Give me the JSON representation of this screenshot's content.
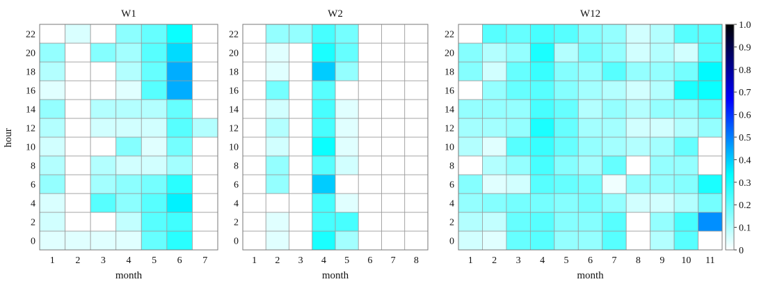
{
  "chart_data": {
    "type": "heatmap",
    "ylabel": "hour",
    "xlabel": "month",
    "y_ticks": [
      "0",
      "2",
      "4",
      "6",
      "8",
      "10",
      "12",
      "14",
      "16",
      "18",
      "20",
      "22"
    ],
    "colorbar": {
      "min": 0,
      "max": 1.0,
      "ticks": [
        "0",
        "0.1",
        "0.2",
        "0.3",
        "0.4",
        "0.5",
        "0.6",
        "0.7",
        "0.8",
        "0.9",
        "1.0"
      ],
      "colors": [
        "#ffffff",
        "#00ffff",
        "#0000ff",
        "#000000"
      ]
    },
    "panels": [
      {
        "title": "W1",
        "categories": [
          "1",
          "2",
          "3",
          "4",
          "5",
          "6",
          "7"
        ],
        "values": [
          [
            0.04,
            0.04,
            0.04,
            0.04,
            0.2,
            0.28,
            0
          ],
          [
            0.06,
            0,
            0,
            0.08,
            0.22,
            0.25,
            0
          ],
          [
            0.05,
            0,
            0.22,
            0.15,
            0.22,
            0.35,
            0
          ],
          [
            0.14,
            0,
            0.12,
            0.15,
            0.18,
            0.28,
            0
          ],
          [
            0.1,
            0,
            0.1,
            0.06,
            0.06,
            0.12,
            0
          ],
          [
            0.06,
            0,
            0,
            0.16,
            0.04,
            0.18,
            0
          ],
          [
            0.1,
            0,
            0.06,
            0.06,
            0.06,
            0.22,
            0.1
          ],
          [
            0.14,
            0,
            0.1,
            0.1,
            0.1,
            0.2,
            0
          ],
          [
            0.04,
            0,
            0,
            0.04,
            0.22,
            0.44,
            0
          ],
          [
            0.1,
            0,
            0,
            0.1,
            0.2,
            0.44,
            0
          ],
          [
            0.14,
            0,
            0.16,
            0.12,
            0.22,
            0.38,
            0
          ],
          [
            0,
            0.05,
            0,
            0.15,
            0.2,
            0.32,
            0
          ]
        ]
      },
      {
        "title": "W2",
        "categories": [
          "1",
          "2",
          "3",
          "4",
          "5",
          "6",
          "7",
          "8"
        ],
        "values": [
          [
            0,
            0.04,
            0,
            0.3,
            0.12,
            0,
            0,
            0
          ],
          [
            0,
            0.04,
            0,
            0.24,
            0.24,
            0,
            0,
            0
          ],
          [
            0,
            0,
            0,
            0.24,
            0.04,
            0,
            0,
            0
          ],
          [
            0,
            0.14,
            0,
            0.4,
            0,
            0,
            0,
            0
          ],
          [
            0,
            0.14,
            0,
            0.22,
            0.06,
            0,
            0,
            0
          ],
          [
            0,
            0.06,
            0,
            0.32,
            0.04,
            0,
            0,
            0
          ],
          [
            0,
            0.1,
            0,
            0.24,
            0.04,
            0,
            0,
            0
          ],
          [
            0,
            0.06,
            0,
            0.24,
            0.04,
            0,
            0,
            0
          ],
          [
            0,
            0.18,
            0,
            0.22,
            0,
            0,
            0,
            0
          ],
          [
            0,
            0.04,
            0,
            0.4,
            0.14,
            0,
            0,
            0
          ],
          [
            0,
            0.04,
            0,
            0.3,
            0.2,
            0,
            0,
            0
          ],
          [
            0,
            0.14,
            0.14,
            0.24,
            0.18,
            0,
            0,
            0
          ]
        ]
      },
      {
        "title": "W12",
        "categories": [
          "1",
          "2",
          "3",
          "4",
          "5",
          "6",
          "7",
          "8",
          "9",
          "10",
          "11"
        ],
        "values": [
          [
            0.06,
            0.04,
            0.2,
            0.22,
            0.14,
            0.14,
            0.22,
            0,
            0.1,
            0.22,
            0
          ],
          [
            0.1,
            0.08,
            0.2,
            0.22,
            0.16,
            0.16,
            0.22,
            0,
            0.14,
            0.24,
            0.48
          ],
          [
            0.14,
            0.16,
            0.18,
            0.18,
            0.16,
            0.18,
            0.14,
            0.06,
            0.06,
            0.1,
            0.18
          ],
          [
            0.16,
            0.04,
            0.06,
            0.22,
            0.2,
            0.18,
            0.02,
            0.14,
            0.14,
            0.16,
            0.3
          ],
          [
            0,
            0.1,
            0.14,
            0.24,
            0.16,
            0.12,
            0.2,
            0,
            0.14,
            0.14,
            0
          ],
          [
            0.1,
            0.04,
            0.22,
            0.26,
            0.2,
            0.14,
            0.12,
            0.1,
            0.12,
            0.2,
            0
          ],
          [
            0.12,
            0.12,
            0.14,
            0.3,
            0.2,
            0.12,
            0.12,
            0.06,
            0.06,
            0.1,
            0.14
          ],
          [
            0.14,
            0.14,
            0.14,
            0.24,
            0.2,
            0.1,
            0.14,
            0.1,
            0.14,
            0.14,
            0.2
          ],
          [
            0,
            0.14,
            0.2,
            0.22,
            0.16,
            0.12,
            0.1,
            0.06,
            0.1,
            0.3,
            0.32
          ],
          [
            0.16,
            0.06,
            0.2,
            0.26,
            0.16,
            0.14,
            0.22,
            0.14,
            0.14,
            0.18,
            0.34
          ],
          [
            0.16,
            0.1,
            0.14,
            0.3,
            0.1,
            0.18,
            0.14,
            0.06,
            0.1,
            0.06,
            0.22
          ],
          [
            0,
            0.22,
            0.2,
            0.24,
            0.22,
            0.16,
            0.14,
            0.06,
            0.1,
            0.22,
            0.22
          ]
        ]
      }
    ]
  }
}
